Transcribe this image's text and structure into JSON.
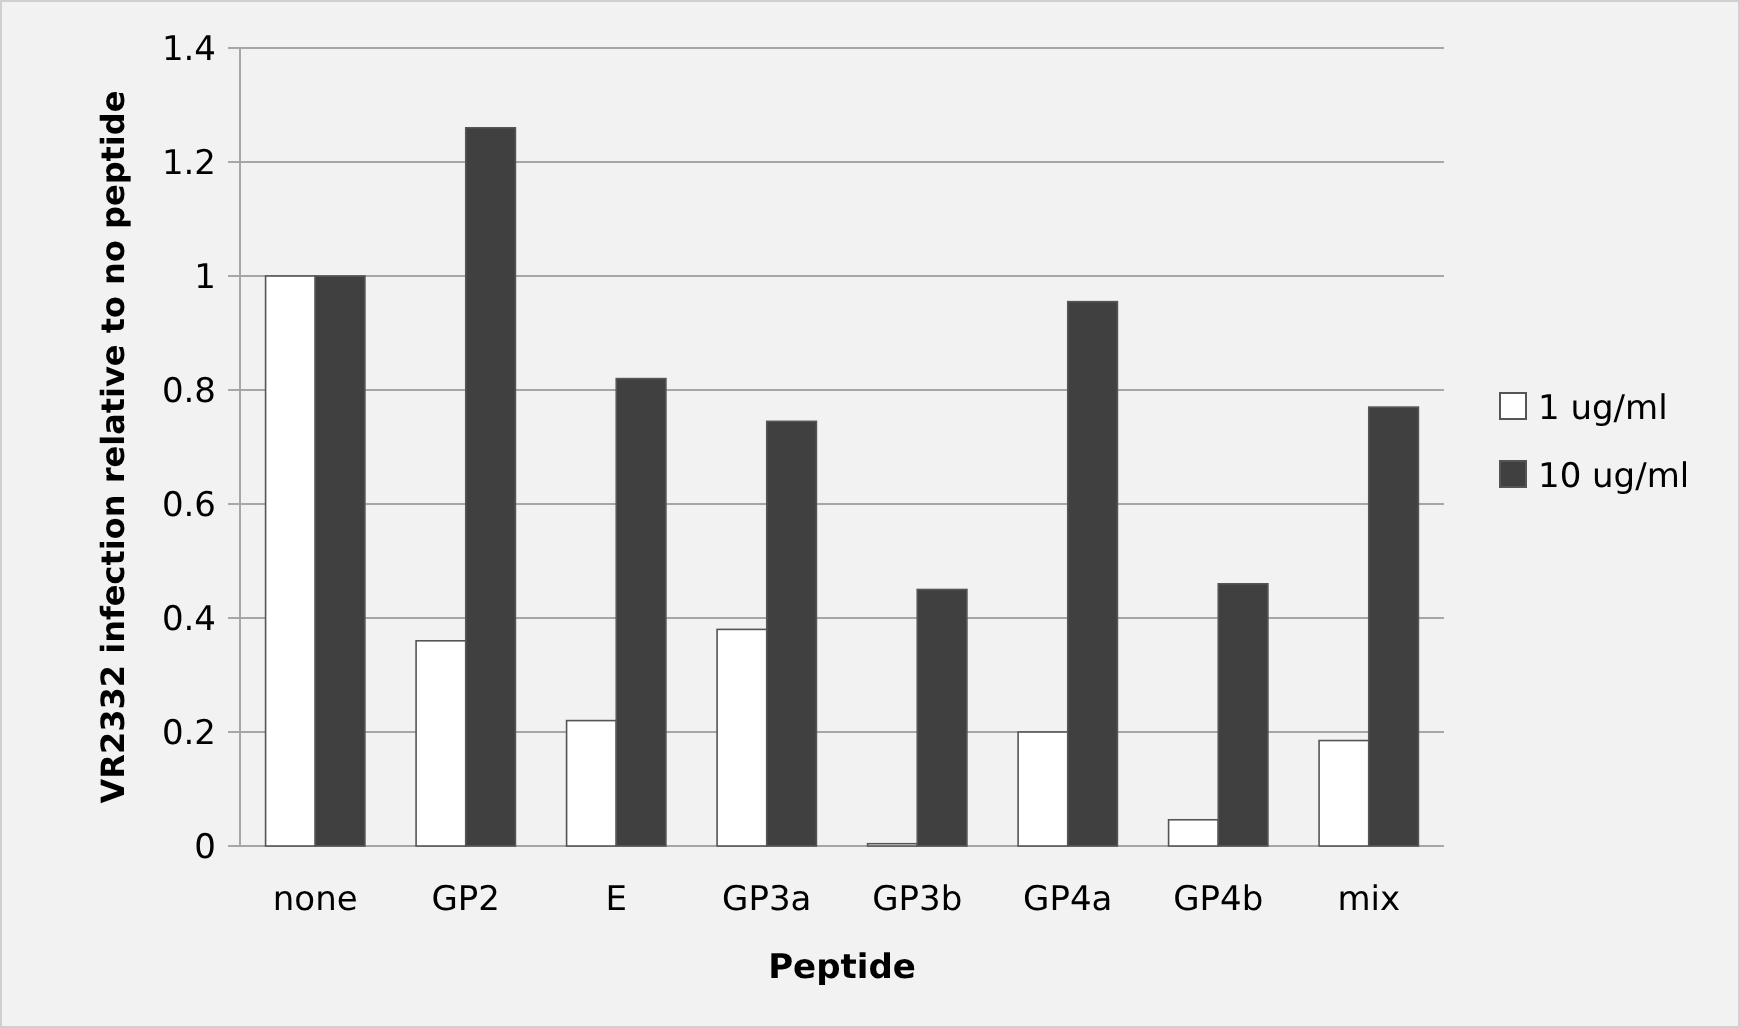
{
  "chart_data": {
    "type": "bar",
    "xlabel": "Peptide",
    "ylabel": "VR2332 infection relative to no peptide",
    "categories": [
      "none",
      "GP2",
      "E",
      "GP3a",
      "GP3b",
      "GP4a",
      "GP4b",
      "mix"
    ],
    "series": [
      {
        "name": "1 ug/ml",
        "color": "#ffffff",
        "values": [
          1,
          0.36,
          0.22,
          0.38,
          0.004,
          0.2,
          0.046,
          0.185
        ]
      },
      {
        "name": "10 ug/ml",
        "color": "#404040",
        "values": [
          1,
          1.26,
          0.82,
          0.745,
          0.45,
          0.955,
          0.46,
          0.77
        ]
      }
    ],
    "ylim": [
      0,
      1.4
    ],
    "yticks": [
      0,
      0.2,
      0.4,
      0.6,
      0.8,
      1,
      1.2,
      1.4
    ],
    "grid": "y",
    "legend": "right"
  }
}
